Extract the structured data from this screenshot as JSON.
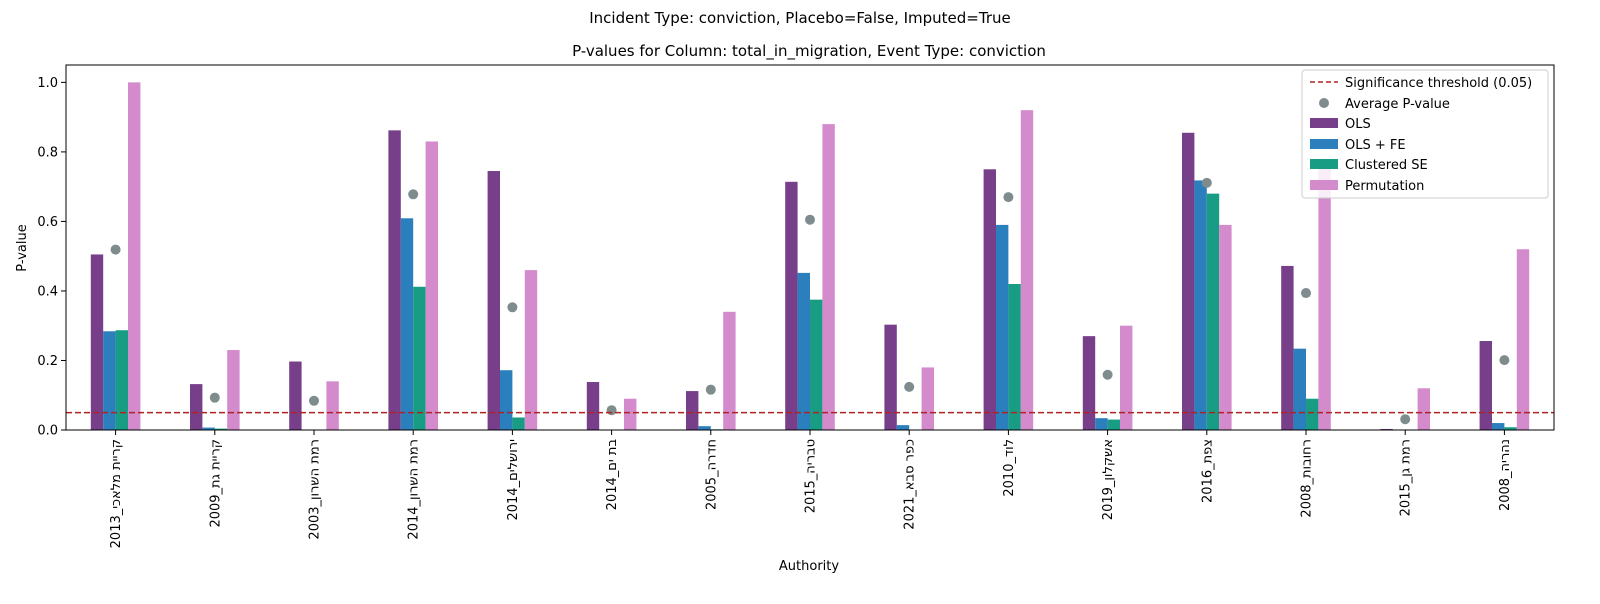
{
  "suptitle": "Incident Type: conviction, Placebo=False, Imputed=True",
  "chart_data": {
    "type": "bar",
    "title": "P-values for Column: total_in_migration, Event Type: conviction",
    "xlabel": "Authority",
    "ylabel": "P-value",
    "ylim": [
      0,
      1.05
    ],
    "yticks": [
      0.0,
      0.2,
      0.4,
      0.6,
      0.8,
      1.0
    ],
    "yticklabels": [
      "0.0",
      "0.2",
      "0.4",
      "0.6",
      "0.8",
      "1.0"
    ],
    "categories": [
      "קריית מלאכי_2013",
      "קריית גת_2009",
      "רמת השרון_2003",
      "רמת השרון_2014",
      "ירושלים_2014",
      "בת ים_2014",
      "חדרה_2005",
      "טבריה_2015",
      "כפר סבא_2021",
      "לוד_2010",
      "אשקלון_2019",
      "צפת_2016",
      "רחובות_2008",
      "רמת גן_2015",
      "נהריה_2008"
    ],
    "series": [
      {
        "name": "OLS",
        "color": "#773f8a",
        "values": [
          0.505,
          0.132,
          0.197,
          0.862,
          0.745,
          0.138,
          0.112,
          0.714,
          0.303,
          0.75,
          0.27,
          0.855,
          0.472,
          0.003,
          0.256
        ]
      },
      {
        "name": "OLS + FE",
        "color": "#2b7fbc",
        "values": [
          0.284,
          0.007,
          0.0,
          0.609,
          0.172,
          0.001,
          0.011,
          0.452,
          0.014,
          0.59,
          0.034,
          0.718,
          0.234,
          0.001,
          0.02
        ]
      },
      {
        "name": "Clustered SE",
        "color": "#189c84",
        "values": [
          0.287,
          0.004,
          0.0,
          0.412,
          0.036,
          0.0,
          0.002,
          0.375,
          0.0,
          0.42,
          0.03,
          0.68,
          0.09,
          0.0,
          0.008
        ]
      },
      {
        "name": "Permutation",
        "color": "#d38bcc",
        "values": [
          1.0,
          0.23,
          0.14,
          0.83,
          0.46,
          0.09,
          0.34,
          0.88,
          0.18,
          0.92,
          0.3,
          0.59,
          0.78,
          0.12,
          0.52
        ]
      }
    ],
    "average": {
      "name": "Average P-value",
      "color": "#7f8c8d",
      "values": [
        0.519,
        0.093,
        0.084,
        0.678,
        0.353,
        0.057,
        0.116,
        0.605,
        0.124,
        0.67,
        0.159,
        0.711,
        0.394,
        0.031,
        0.201
      ]
    },
    "threshold": {
      "name": "Significance threshold (0.05)",
      "value": 0.05,
      "color": "#b22222"
    },
    "legend_position": "top-right",
    "grid": false
  }
}
